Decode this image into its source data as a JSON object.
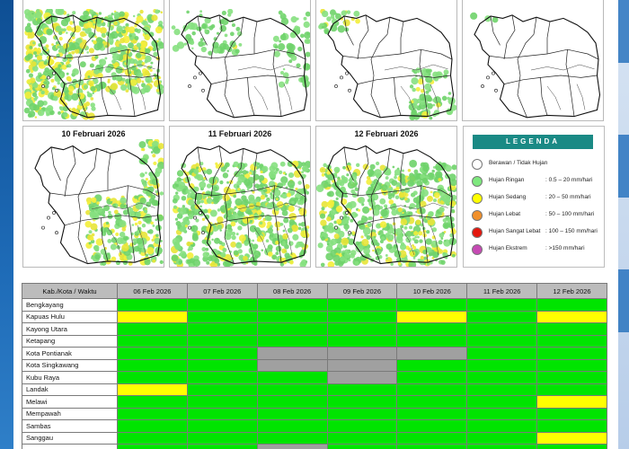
{
  "maps": {
    "panels": [
      {
        "title": "",
        "rain": "heavy-nw"
      },
      {
        "title": "",
        "rain": "sparse"
      },
      {
        "title": "",
        "rain": "se-patch"
      },
      {
        "title": "",
        "rain": "none"
      },
      {
        "title": "10 Februari 2026",
        "rain": "south-heavy"
      },
      {
        "title": "11 Februari 2026",
        "rain": "widespread"
      },
      {
        "title": "12 Februari 2026",
        "rain": "widespread"
      }
    ]
  },
  "legend": {
    "title": "LEGENDA",
    "items": [
      {
        "label": "Berawan / Tidak Hujan",
        "range": "",
        "color": "#ffffff"
      },
      {
        "label": "Hujan Ringan",
        "range": ": 0.5 – 20 mm/hari",
        "color": "#7ee87e"
      },
      {
        "label": "Hujan Sedang",
        "range": ": 20 – 50 mm/hari",
        "color": "#ffff00"
      },
      {
        "label": "Hujan Lebat",
        "range": ": 50 – 100 mm/hari",
        "color": "#f0902b"
      },
      {
        "label": "Hujan Sangat Lebat",
        "range": ": 100 – 150 mm/hari",
        "color": "#e3170e"
      },
      {
        "label": "Hujan Ekstrem",
        "range": ": >150 mm/hari",
        "color": "#c64ab4"
      }
    ]
  },
  "table": {
    "header": [
      "Kab./Kota / Waktu",
      "06 Feb 2026",
      "07 Feb 2026",
      "08 Feb 2026",
      "09 Feb 2026",
      "10 Feb 2026",
      "11 Feb 2026",
      "12 Feb 2026"
    ],
    "category_colors": {
      "green": "#00e400",
      "yellow": "#ffff00",
      "gray": "#a0a0a0"
    },
    "rows": [
      {
        "name": "Bengkayang",
        "cells": [
          "green",
          "green",
          "green",
          "green",
          "green",
          "green",
          "green"
        ]
      },
      {
        "name": "Kapuas Hulu",
        "cells": [
          "yellow",
          "green",
          "green",
          "green",
          "yellow",
          "green",
          "yellow"
        ]
      },
      {
        "name": "Kayong Utara",
        "cells": [
          "green",
          "green",
          "green",
          "green",
          "green",
          "green",
          "green"
        ]
      },
      {
        "name": "Ketapang",
        "cells": [
          "green",
          "green",
          "green",
          "green",
          "green",
          "green",
          "green"
        ]
      },
      {
        "name": "Kota Pontianak",
        "cells": [
          "green",
          "green",
          "gray",
          "gray",
          "gray",
          "green",
          "green"
        ]
      },
      {
        "name": "Kota Singkawang",
        "cells": [
          "green",
          "green",
          "gray",
          "gray",
          "green",
          "green",
          "green"
        ]
      },
      {
        "name": "Kubu Raya",
        "cells": [
          "green",
          "green",
          "green",
          "gray",
          "green",
          "green",
          "green"
        ]
      },
      {
        "name": "Landak",
        "cells": [
          "yellow",
          "green",
          "green",
          "green",
          "green",
          "green",
          "green"
        ]
      },
      {
        "name": "Melawi",
        "cells": [
          "green",
          "green",
          "green",
          "green",
          "green",
          "green",
          "yellow"
        ]
      },
      {
        "name": "Mempawah",
        "cells": [
          "green",
          "green",
          "green",
          "green",
          "green",
          "green",
          "green"
        ]
      },
      {
        "name": "Sambas",
        "cells": [
          "green",
          "green",
          "green",
          "green",
          "green",
          "green",
          "green"
        ]
      },
      {
        "name": "Sanggau",
        "cells": [
          "green",
          "green",
          "green",
          "green",
          "green",
          "green",
          "yellow"
        ]
      },
      {
        "name": "",
        "cells": [
          "green",
          "green",
          "gray",
          "green",
          "green",
          "green",
          "green"
        ]
      }
    ]
  }
}
